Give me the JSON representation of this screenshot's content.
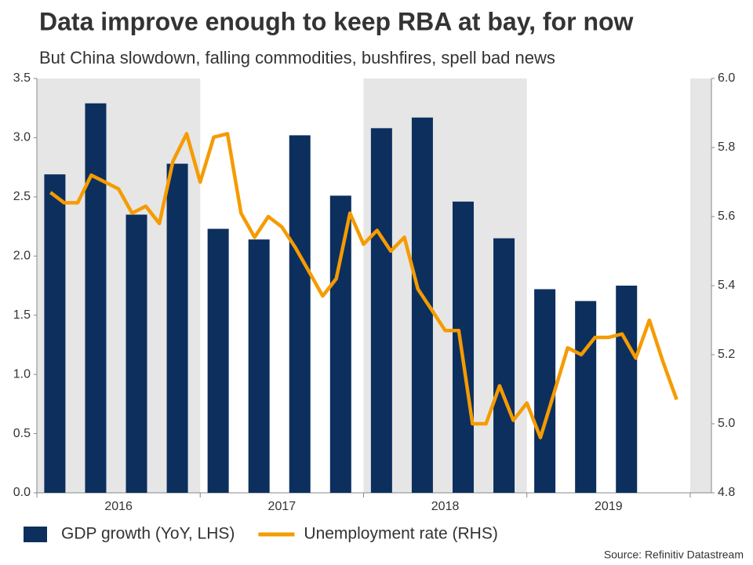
{
  "chart_data": {
    "type": "combo",
    "title": "Data improve enough to keep RBA at bay, for now",
    "subtitle": "But China slowdown, falling commodities, bushfires, spell bad news",
    "source": "Source: Refinitiv Datastream",
    "xlim": [
      2016,
      2020.13
    ],
    "xticks": [
      2016,
      2017,
      2018,
      2019,
      2020
    ],
    "year_labels": [
      "2016",
      "2017",
      "2018",
      "2019"
    ],
    "shade_color": "#e6e6e6",
    "ylim": [
      0,
      3.5
    ],
    "yticks": [
      {
        "value": 0,
        "label": "0.0"
      },
      0.5,
      {
        "value": 1,
        "label": "1.0"
      },
      1.5,
      {
        "value": 2,
        "label": "2.0"
      },
      2.5,
      {
        "value": 3,
        "label": "3.0"
      },
      3.5
    ],
    "y2lim": [
      4.8,
      6.0
    ],
    "y2ticks": [
      4.8,
      {
        "value": 5,
        "label": "5.0"
      },
      5.2,
      5.4,
      5.6,
      5.8,
      {
        "value": 6,
        "label": "6.0"
      }
    ],
    "series": [
      {
        "name": "GDP growth (YoY, LHS)",
        "type": "bar",
        "color": "#0c2f5e",
        "x": [
          2016.11,
          2016.36,
          2016.61,
          2016.86,
          2017.11,
          2017.36,
          2017.61,
          2017.86,
          2018.11,
          2018.36,
          2018.61,
          2018.86,
          2019.11,
          2019.36,
          2019.61
        ],
        "values": [
          2.69,
          3.29,
          2.35,
          2.78,
          2.23,
          2.14,
          3.02,
          2.51,
          3.08,
          3.17,
          2.46,
          2.15,
          1.72,
          1.62,
          1.75
        ]
      },
      {
        "name": "Unemployment rate (RHS)",
        "type": "line",
        "color": "#f59b00",
        "axis": "y2",
        "x": [
          2016.083,
          2016.167,
          2016.25,
          2016.333,
          2016.417,
          2016.5,
          2016.583,
          2016.667,
          2016.75,
          2016.833,
          2016.917,
          2017.0,
          2017.083,
          2017.167,
          2017.25,
          2017.333,
          2017.417,
          2017.5,
          2017.583,
          2017.667,
          2017.75,
          2017.833,
          2017.917,
          2018.0,
          2018.083,
          2018.167,
          2018.25,
          2018.333,
          2018.417,
          2018.5,
          2018.583,
          2018.667,
          2018.75,
          2018.833,
          2018.917,
          2019.0,
          2019.083,
          2019.167,
          2019.25,
          2019.333,
          2019.417,
          2019.5,
          2019.583,
          2019.667,
          2019.75,
          2019.833,
          2019.917
        ],
        "values": [
          5.67,
          5.64,
          5.64,
          5.72,
          5.7,
          5.68,
          5.61,
          5.63,
          5.58,
          5.76,
          5.84,
          5.7,
          5.83,
          5.84,
          5.61,
          5.54,
          5.6,
          5.57,
          5.51,
          5.44,
          5.37,
          5.42,
          5.61,
          5.52,
          5.56,
          5.5,
          5.54,
          5.39,
          5.33,
          5.27,
          5.27,
          5.0,
          5.0,
          5.11,
          5.01,
          5.06,
          4.96,
          5.09,
          5.22,
          5.2,
          5.25,
          5.25,
          5.26,
          5.19,
          5.3,
          5.18,
          5.07
        ]
      }
    ]
  }
}
